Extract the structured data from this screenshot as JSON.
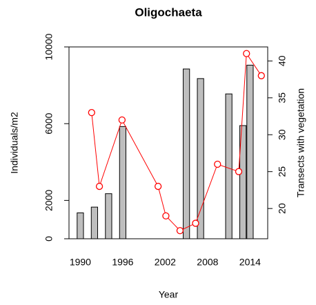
{
  "chart_data": {
    "type": "bar",
    "title": "Oligochaeta",
    "xlabel": "Year",
    "ylabel": "Individuals/m2",
    "y2label": "Transects with vegetation",
    "xlim": [
      1988.4,
      2016.5
    ],
    "xticks": [
      1990,
      1996,
      2002,
      2008,
      2014
    ],
    "ylim": [
      0,
      10000
    ],
    "yticks": [
      0,
      2000,
      6000,
      10000
    ],
    "y2lim": [
      15.9,
      41.9
    ],
    "y2ticks": [
      20,
      25,
      30,
      35,
      40
    ],
    "series": [
      {
        "type": "bar",
        "color": "#bebebe",
        "x": [
          1990,
          1992,
          1994,
          1996,
          2005,
          2007,
          2011,
          2013,
          2014
        ],
        "values": [
          1350,
          1650,
          2350,
          5850,
          8850,
          8350,
          7550,
          5900,
          9050
        ]
      },
      {
        "type": "line",
        "axis": "y2",
        "color": "#ff0000",
        "x": [
          1991.6,
          1992.7,
          1995.9,
          2001.0,
          2002.1,
          2004.1,
          2006.3,
          2009.4,
          2012.4,
          2013.5,
          2015.6
        ],
        "values": [
          33,
          23,
          32,
          23,
          19,
          17,
          18,
          26,
          25,
          41,
          38
        ]
      }
    ]
  }
}
